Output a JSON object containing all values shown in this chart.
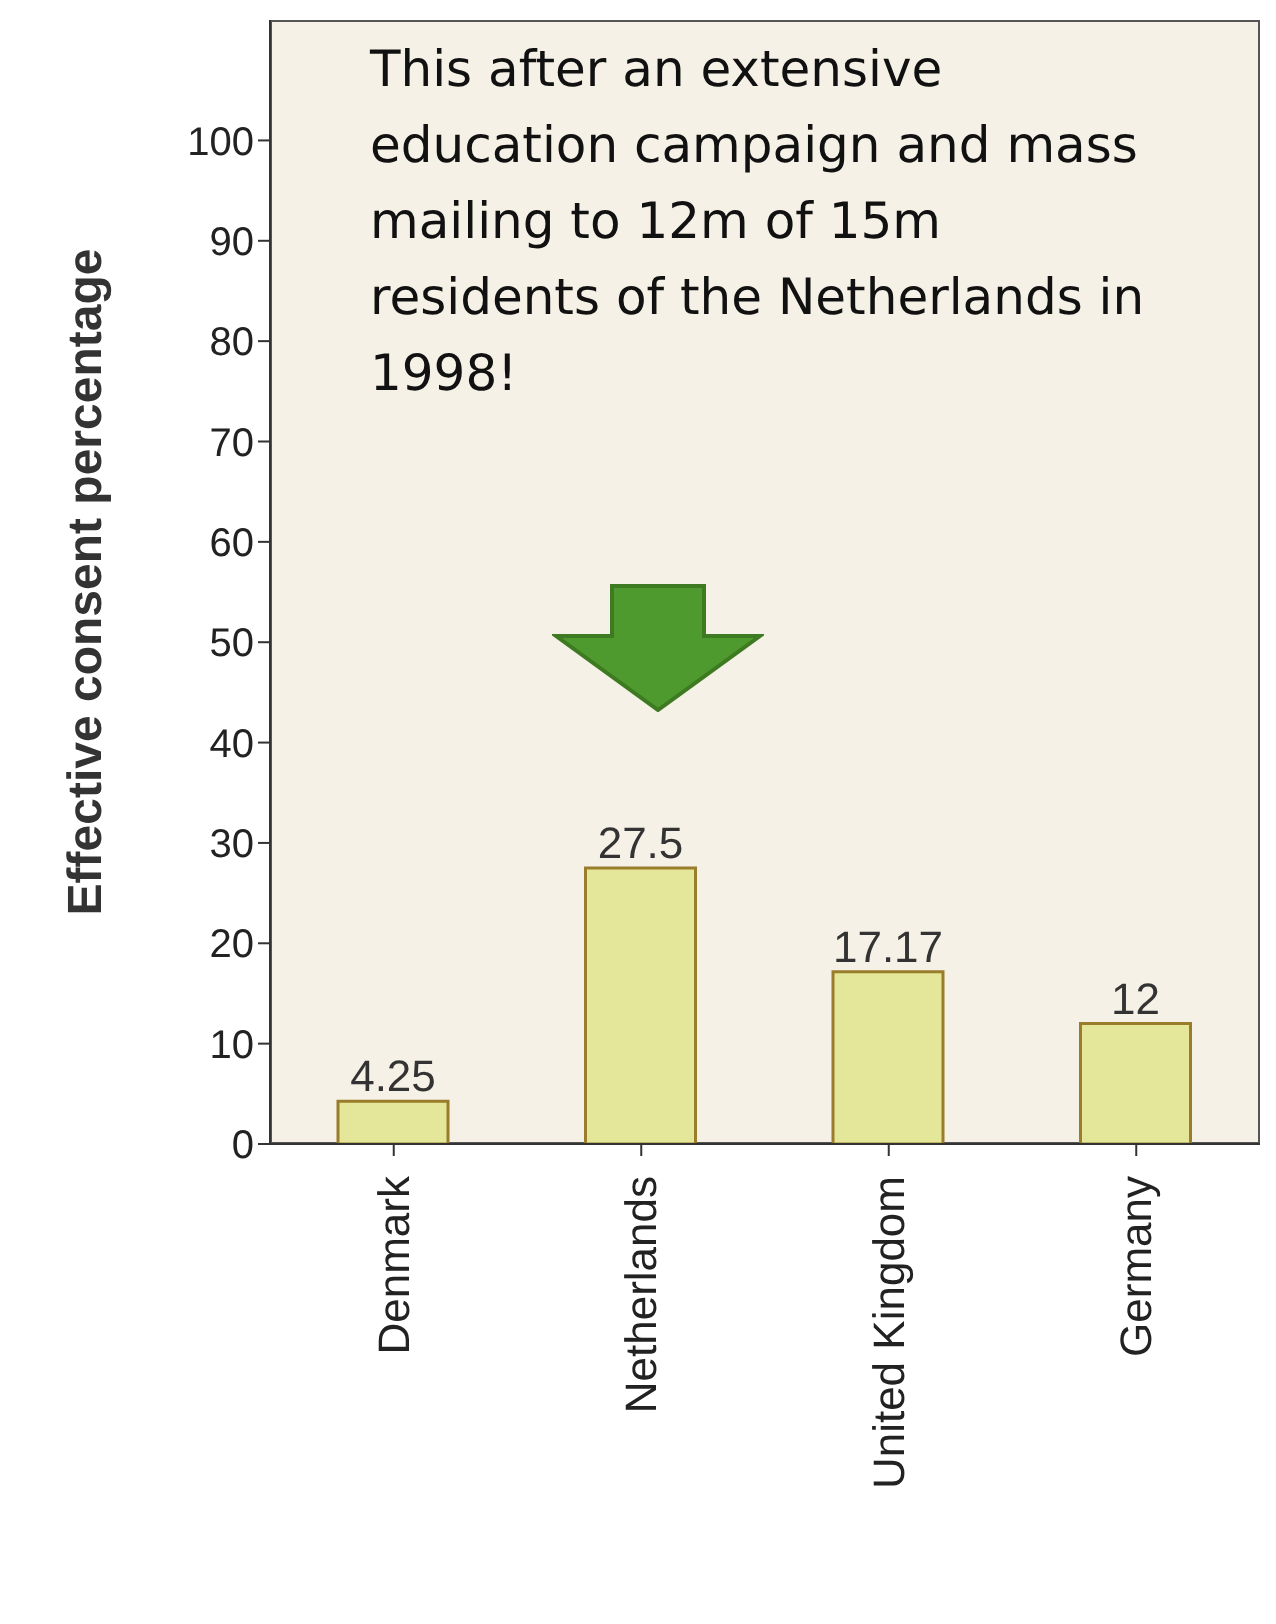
{
  "chart_data": {
    "type": "bar",
    "ylabel": "Effective consent percentage",
    "categories": [
      "Denmark",
      "Netherlands",
      "United Kingdom",
      "Germany"
    ],
    "values": [
      4.25,
      27.5,
      17.17,
      12
    ],
    "color": "#e4e79a",
    "ylim": [
      0,
      112
    ],
    "yticks": [
      0,
      10,
      20,
      30,
      40,
      50,
      60,
      70,
      80,
      90,
      100
    ],
    "data_labels": true,
    "grid": false,
    "legend": false,
    "annotations": [
      "This after an extensive education campaign and mass mailing to 12m of 15m residents of the Netherlands in 1998!"
    ]
  }
}
